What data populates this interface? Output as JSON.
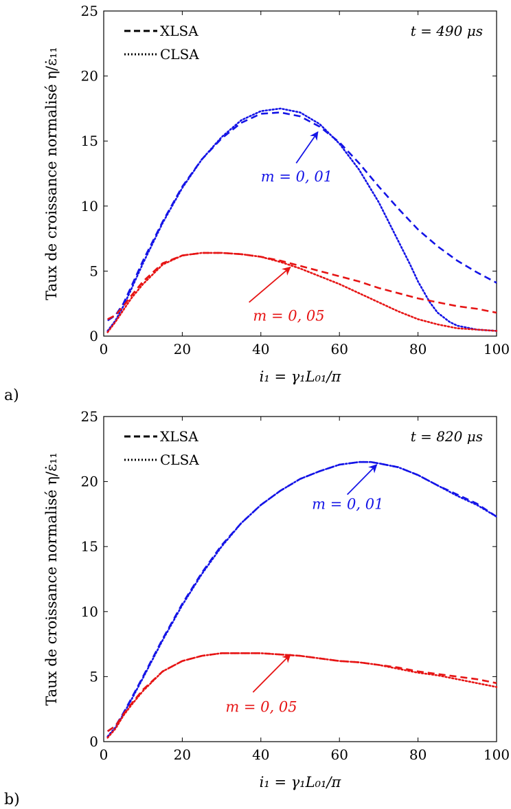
{
  "chart_data": [
    {
      "type": "line",
      "panel_label": "a)",
      "time_label": "t = 490 μs",
      "xlabel": "i₁ = γ₁L₀₁/π",
      "ylabel": "Taux de croissance normalisé η/ε̇₁₁",
      "xlim": [
        0,
        100
      ],
      "ylim": [
        0,
        25
      ],
      "xticks": [
        0,
        20,
        40,
        60,
        80,
        100
      ],
      "yticks": [
        0,
        5,
        10,
        15,
        20,
        25
      ],
      "legend": [
        {
          "label": "XLSA",
          "style": "dashed"
        },
        {
          "label": "CLSA",
          "style": "dotted"
        }
      ],
      "legend_position": "top-left",
      "annotations": [
        {
          "text": "m = 0, 01",
          "color": "#1414e6",
          "text_at": [
            40,
            11.9
          ],
          "arrow_from": [
            49,
            13.3
          ],
          "arrow_to": [
            54.5,
            15.7
          ]
        },
        {
          "text": "m = 0, 05",
          "color": "#e61414",
          "text_at": [
            38,
            1.2
          ],
          "arrow_from": [
            37,
            2.6
          ],
          "arrow_to": [
            47.5,
            5.3
          ]
        }
      ],
      "series": [
        {
          "name": "XLSA",
          "group": "m = 0, 01",
          "style": "dashed",
          "color": "#1414e6",
          "x": [
            1,
            3,
            5,
            7,
            10,
            15,
            20,
            25,
            30,
            35,
            40,
            45,
            50,
            55,
            60,
            65,
            70,
            75,
            80,
            85,
            90,
            95,
            100
          ],
          "y": [
            1.2,
            1.6,
            2.5,
            3.8,
            5.8,
            8.8,
            11.5,
            13.6,
            15.2,
            16.4,
            17.1,
            17.2,
            16.9,
            16.1,
            14.9,
            13.3,
            11.5,
            9.8,
            8.2,
            6.9,
            5.8,
            4.9,
            4.1
          ]
        },
        {
          "name": "CLSA",
          "group": "m = 0, 01",
          "style": "dotted",
          "color": "#1414e6",
          "x": [
            1,
            3,
            5,
            7,
            10,
            15,
            20,
            25,
            30,
            35,
            40,
            45,
            50,
            55,
            60,
            65,
            70,
            75,
            78,
            80,
            83,
            85,
            88,
            90,
            95,
            100
          ],
          "y": [
            0.4,
            1.2,
            2.3,
            3.6,
            5.6,
            8.7,
            11.4,
            13.6,
            15.3,
            16.6,
            17.3,
            17.5,
            17.2,
            16.3,
            14.8,
            12.8,
            10.3,
            7.3,
            5.5,
            4.2,
            2.6,
            1.8,
            1.1,
            0.8,
            0.5,
            0.4
          ]
        },
        {
          "name": "XLSA",
          "group": "m = 0, 05",
          "style": "dashed",
          "color": "#e61414",
          "x": [
            1,
            3,
            5,
            7,
            10,
            15,
            20,
            25,
            30,
            35,
            40,
            45,
            50,
            55,
            60,
            65,
            70,
            75,
            80,
            85,
            90,
            95,
            100
          ],
          "y": [
            1.3,
            1.6,
            2.3,
            3.1,
            4.2,
            5.6,
            6.2,
            6.4,
            6.4,
            6.3,
            6.1,
            5.8,
            5.4,
            5.0,
            4.6,
            4.2,
            3.7,
            3.3,
            2.9,
            2.6,
            2.3,
            2.1,
            1.8
          ]
        },
        {
          "name": "CLSA",
          "group": "m = 0, 05",
          "style": "dotted",
          "color": "#e61414",
          "x": [
            1,
            3,
            5,
            7,
            10,
            15,
            20,
            25,
            30,
            35,
            40,
            45,
            50,
            55,
            60,
            65,
            70,
            75,
            80,
            85,
            90,
            95,
            100
          ],
          "y": [
            0.3,
            1.1,
            2.0,
            2.9,
            4.0,
            5.5,
            6.2,
            6.4,
            6.4,
            6.3,
            6.1,
            5.7,
            5.2,
            4.6,
            4.0,
            3.3,
            2.6,
            1.9,
            1.3,
            0.9,
            0.6,
            0.5,
            0.4
          ]
        }
      ]
    },
    {
      "type": "line",
      "panel_label": "b)",
      "time_label": "t = 820 μs",
      "xlabel": "i₁ = γ₁L₀₁/π",
      "ylabel": "Taux de croissance normalisé η/ε̇₁₁",
      "xlim": [
        0,
        100
      ],
      "ylim": [
        0,
        25
      ],
      "xticks": [
        0,
        20,
        40,
        60,
        80,
        100
      ],
      "yticks": [
        0,
        5,
        10,
        15,
        20,
        25
      ],
      "legend": [
        {
          "label": "XLSA",
          "style": "dashed"
        },
        {
          "label": "CLSA",
          "style": "dotted"
        }
      ],
      "legend_position": "top-left",
      "annotations": [
        {
          "text": "m = 0, 01",
          "color": "#1414e6",
          "text_at": [
            53,
            17.9
          ],
          "arrow_from": [
            62,
            19.0
          ],
          "arrow_to": [
            69.5,
            21.3
          ]
        },
        {
          "text": "m = 0, 05",
          "color": "#e61414",
          "text_at": [
            31,
            2.3
          ],
          "arrow_from": [
            38,
            3.8
          ],
          "arrow_to": [
            47.5,
            6.7
          ]
        }
      ],
      "series": [
        {
          "name": "XLSA",
          "group": "m = 0, 01",
          "style": "dashed",
          "color": "#1414e6",
          "x": [
            1,
            3,
            5,
            7,
            10,
            15,
            20,
            25,
            30,
            35,
            40,
            45,
            50,
            55,
            60,
            65,
            68,
            70,
            75,
            80,
            85,
            90,
            95,
            100
          ],
          "y": [
            0.8,
            1.2,
            2.2,
            3.3,
            5.0,
            7.9,
            10.6,
            13.0,
            15.1,
            16.8,
            18.2,
            19.3,
            20.2,
            20.8,
            21.3,
            21.5,
            21.5,
            21.4,
            21.1,
            20.5,
            19.7,
            19.0,
            18.3,
            17.3
          ]
        },
        {
          "name": "CLSA",
          "group": "m = 0, 01",
          "style": "dotted",
          "color": "#1414e6",
          "x": [
            1,
            3,
            5,
            7,
            10,
            15,
            20,
            25,
            30,
            35,
            40,
            45,
            50,
            55,
            60,
            65,
            68,
            70,
            75,
            80,
            85,
            90,
            95,
            100
          ],
          "y": [
            0.4,
            1.1,
            2.1,
            3.2,
            4.9,
            7.8,
            10.5,
            12.9,
            15.0,
            16.8,
            18.2,
            19.3,
            20.2,
            20.8,
            21.3,
            21.5,
            21.5,
            21.4,
            21.1,
            20.5,
            19.7,
            18.9,
            18.2,
            17.3
          ]
        },
        {
          "name": "XLSA",
          "group": "m = 0, 05",
          "style": "dashed",
          "color": "#e61414",
          "x": [
            1,
            3,
            5,
            7,
            10,
            15,
            20,
            25,
            30,
            35,
            40,
            45,
            50,
            55,
            60,
            65,
            70,
            75,
            80,
            85,
            90,
            95,
            100
          ],
          "y": [
            0.8,
            1.2,
            2.1,
            2.9,
            4.0,
            5.4,
            6.2,
            6.6,
            6.8,
            6.8,
            6.8,
            6.7,
            6.6,
            6.4,
            6.2,
            6.1,
            5.9,
            5.7,
            5.4,
            5.2,
            5.0,
            4.8,
            4.5
          ]
        },
        {
          "name": "CLSA",
          "group": "m = 0, 05",
          "style": "dotted",
          "color": "#e61414",
          "x": [
            1,
            3,
            5,
            7,
            10,
            15,
            20,
            25,
            30,
            35,
            40,
            45,
            50,
            55,
            60,
            65,
            70,
            75,
            80,
            85,
            90,
            95,
            100
          ],
          "y": [
            0.3,
            1.0,
            2.0,
            2.8,
            3.9,
            5.4,
            6.2,
            6.6,
            6.8,
            6.8,
            6.8,
            6.7,
            6.6,
            6.4,
            6.2,
            6.1,
            5.9,
            5.6,
            5.3,
            5.1,
            4.8,
            4.5,
            4.2
          ]
        }
      ]
    }
  ]
}
